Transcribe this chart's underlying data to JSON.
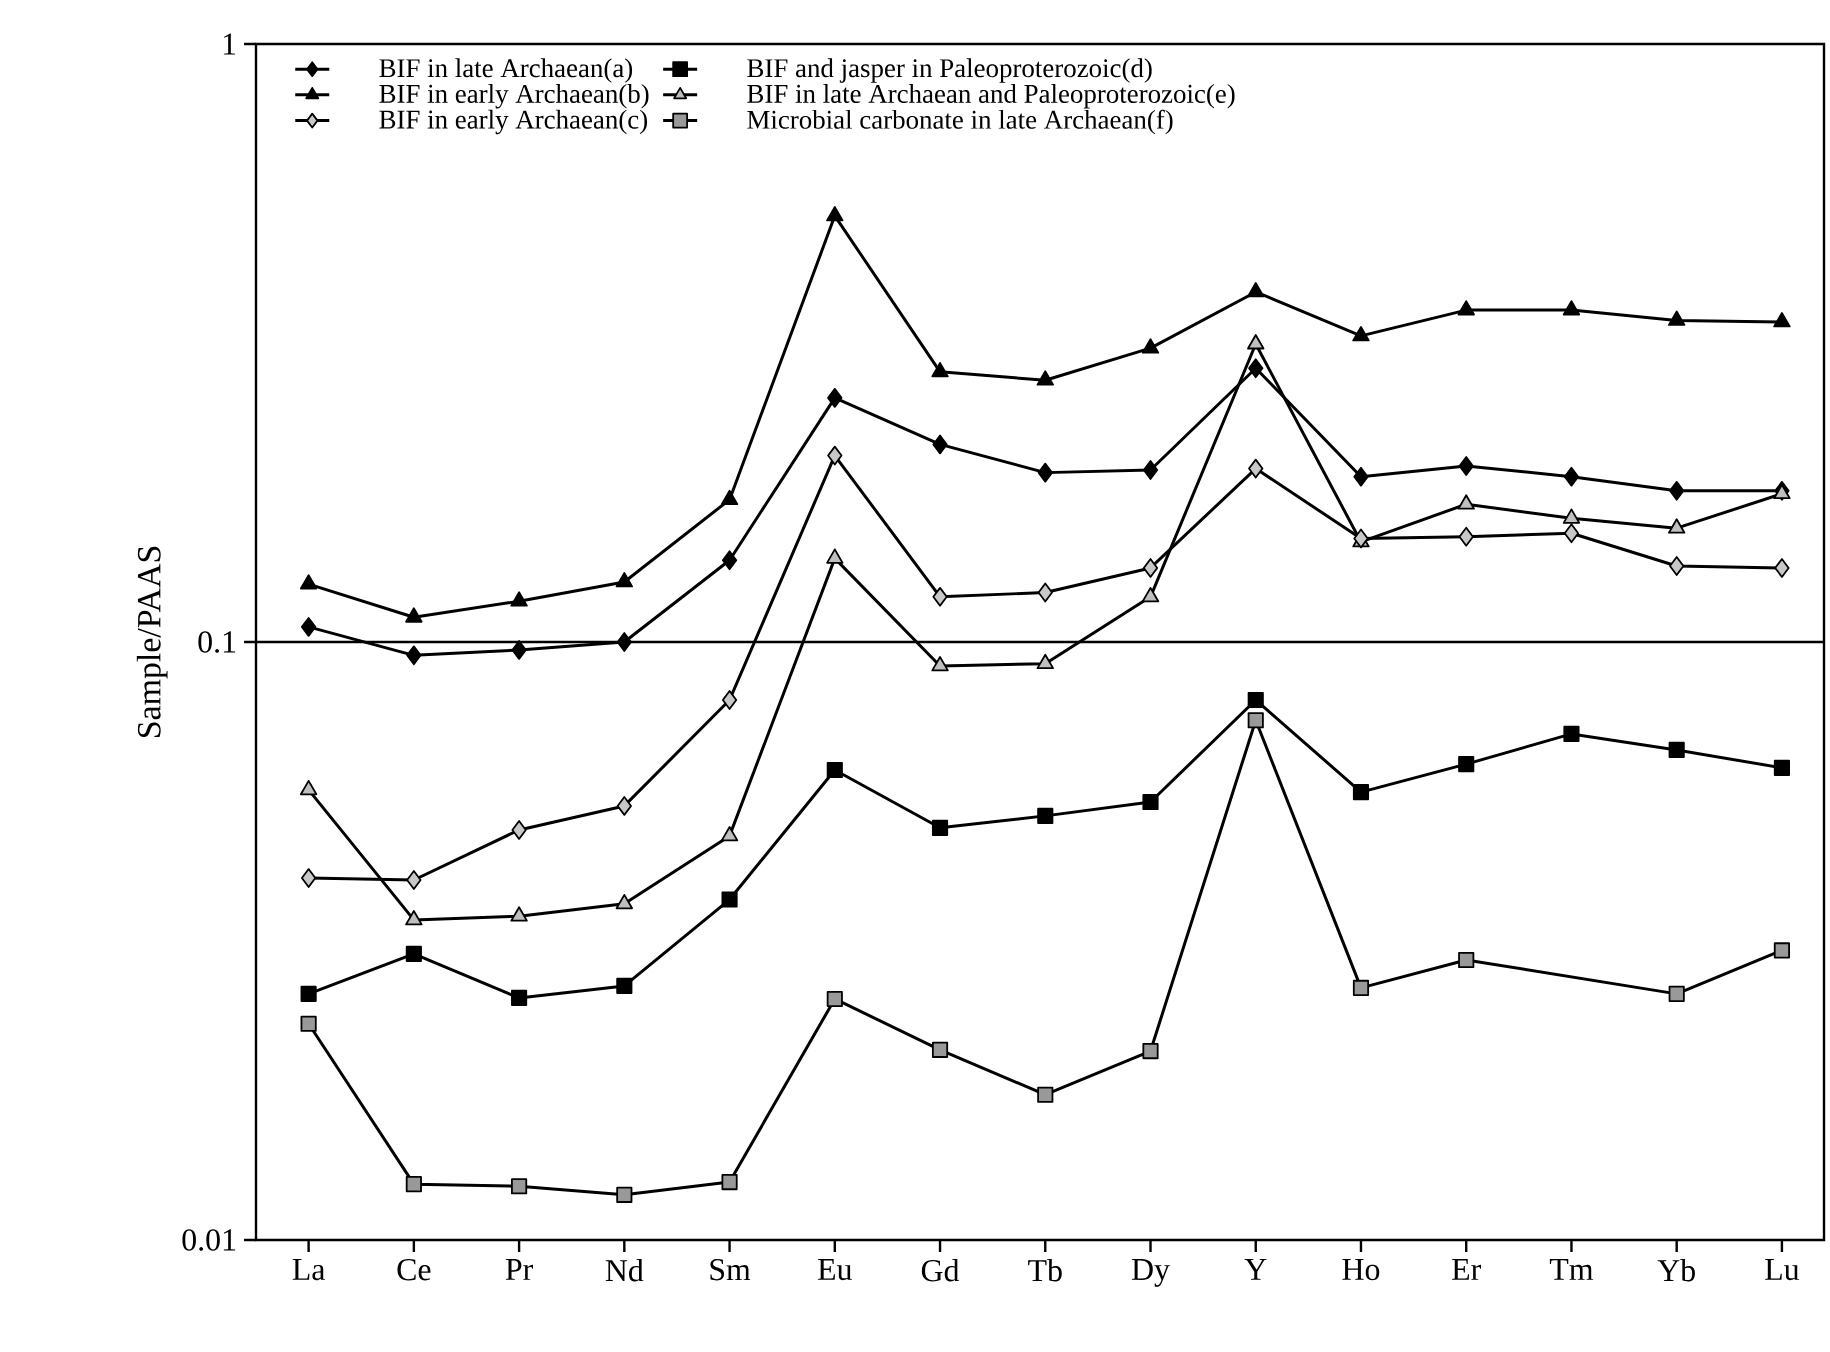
{
  "chart_data": {
    "type": "line",
    "ylabel": "Sample/PAAS",
    "categories": [
      "La",
      "Ce",
      "Pr",
      "Nd",
      "Sm",
      "Eu",
      "Gd",
      "Tb",
      "Dy",
      "Y",
      "Ho",
      "Er",
      "Tm",
      "Yb",
      "Lu"
    ],
    "series": [
      {
        "name": "BIF in late Archaean(a)",
        "color": "#000000",
        "marker": "diamond",
        "values": [
          0.106,
          0.095,
          0.097,
          0.1,
          0.137,
          0.256,
          0.214,
          0.192,
          0.194,
          0.287,
          0.189,
          0.197,
          0.189,
          0.179,
          0.179
        ]
      },
      {
        "name": "BIF in early Archaean(b)",
        "color": "#000000",
        "marker": "triangle",
        "values": [
          0.125,
          0.11,
          0.117,
          0.126,
          0.173,
          0.516,
          0.283,
          0.274,
          0.31,
          0.385,
          0.325,
          0.359,
          0.359,
          0.345,
          0.343
        ]
      },
      {
        "name": "BIF in early Archaean(c)",
        "color": "#c8c8c8",
        "marker": "diamond",
        "values": [
          0.0403,
          0.04,
          0.0485,
          0.0532,
          0.08,
          0.205,
          0.119,
          0.121,
          0.133,
          0.195,
          0.149,
          0.15,
          0.152,
          0.134,
          0.133
        ]
      },
      {
        "name": "BIF and jasper in Paleoproterozoic(d)",
        "color": "#000000",
        "marker": "square",
        "values": [
          0.0258,
          0.0301,
          0.0254,
          0.0266,
          0.0371,
          0.0611,
          0.0489,
          0.0512,
          0.054,
          0.08,
          0.0561,
          0.0625,
          0.0702,
          0.066,
          0.0616
        ]
      },
      {
        "name": "BIF in late Archaean and Paleoproterozoic(e)",
        "color": "#bfbfbf",
        "marker": "triangle",
        "values": [
          0.0566,
          0.0343,
          0.0348,
          0.0365,
          0.0474,
          0.138,
          0.0912,
          0.092,
          0.119,
          0.315,
          0.147,
          0.17,
          0.161,
          0.155,
          0.177
        ]
      },
      {
        "name": "Microbial carbonate in late Archaean(f)",
        "color": "#999999",
        "marker": "square",
        "values": [
          0.023,
          0.0124,
          0.0123,
          0.0119,
          0.0125,
          0.0253,
          0.0208,
          0.0175,
          0.0207,
          0.074,
          0.0264,
          0.0294,
          null,
          0.0258,
          0.0305
        ]
      }
    ],
    "log": "y",
    "ylim": [
      0.01,
      1
    ],
    "yticks": [
      0.01,
      0.1,
      1
    ],
    "ref_lines": [
      {
        "axis": "y",
        "value": 0.1
      }
    ],
    "legend": "top",
    "line_style": "solid"
  }
}
